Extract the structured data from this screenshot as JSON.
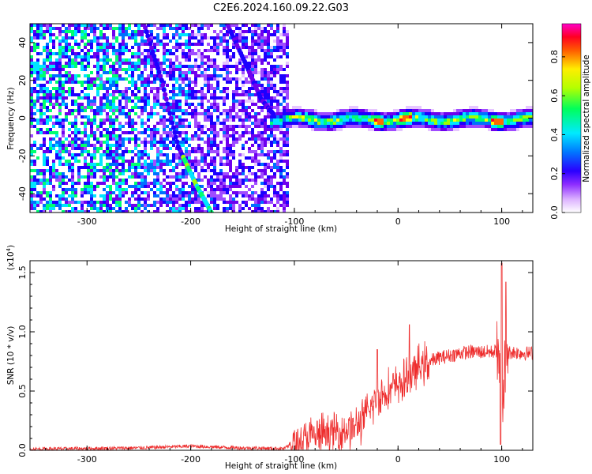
{
  "title": "C2E6.2024.160.09.22.G03",
  "colors": {
    "snr_line": "#ee2d2d",
    "colormap": [
      "#ffffff",
      "#e6c6ff",
      "#a04cff",
      "#6e00ee",
      "#1c00ff",
      "#0070ff",
      "#00e5ff",
      "#00ff70",
      "#a0ff00",
      "#ffff00",
      "#ff6a00",
      "#ff0030",
      "#ff00c8"
    ]
  },
  "chart_data": [
    {
      "type": "heatmap",
      "xlabel": "Height of straight line (km)",
      "ylabel": "Frequency (Hz)",
      "xlim": [
        -355,
        130
      ],
      "ylim": [
        -50,
        50
      ],
      "xticks": [
        -300,
        -200,
        -100,
        0,
        100
      ],
      "yticks": [
        -40,
        -20,
        0,
        20,
        40
      ],
      "features": {
        "broadband_noise_x_range": [
          -355,
          -108
        ],
        "ionospheric_trace_center_hz": 0,
        "ionospheric_trace_x_range": [
          -125,
          130
        ],
        "peak_amplitude_near_x": [
          -20,
          5,
          95
        ],
        "satellite_tracks": [
          {
            "x": [
              -245,
              -228,
              -212,
              -195,
              -180
            ],
            "y": [
              50,
              20,
              -15,
              -35,
              -50
            ]
          },
          {
            "x": [
              -165,
              -148,
              -132,
              -120
            ],
            "y": [
              50,
              30,
              10,
              2
            ]
          }
        ]
      },
      "colorbar": {
        "label": "Normalized spectral amplitude",
        "ticks": [
          "0.0",
          "0.2",
          "0.4",
          "0.6",
          "0.8"
        ],
        "range": [
          0,
          0.97
        ]
      }
    },
    {
      "type": "line",
      "xlabel": "Height of straight line (km)",
      "ylabel": "SNR (10 * v/v)",
      "yscale_label": "(x10",
      "yscale_exp": "4",
      "xlim": [
        -355,
        130
      ],
      "ylim": [
        0,
        1.6
      ],
      "xticks": [
        -300,
        -200,
        -100,
        0,
        100
      ],
      "yticks": [
        "0.0",
        "0.5",
        "1.0",
        "1.5"
      ],
      "series": [
        {
          "x": [
            -355,
            -300,
            -250,
            -200,
            -150,
            -110,
            -100,
            -80,
            -60,
            -40,
            -30,
            -20,
            -10,
            0,
            10,
            20,
            30,
            40,
            50,
            60,
            70,
            80,
            90,
            95,
            100,
            105,
            110,
            120,
            130
          ],
          "values": [
            0.01,
            0.015,
            0.02,
            0.035,
            0.02,
            0.015,
            0.06,
            0.12,
            0.15,
            0.2,
            0.3,
            0.45,
            0.5,
            0.55,
            0.6,
            0.7,
            0.75,
            0.78,
            0.8,
            0.82,
            0.83,
            0.83,
            0.83,
            0.84,
            0.45,
            0.82,
            0.83,
            0.82,
            0.82
          ],
          "spikes": [
            {
              "x": -20,
              "value": 0.85
            },
            {
              "x": 11,
              "value": 1.06
            },
            {
              "x": 100,
              "value": 1.58
            },
            {
              "x": 104,
              "value": 1.42
            },
            {
              "x": 99,
              "value": 0.05
            }
          ]
        }
      ]
    }
  ]
}
